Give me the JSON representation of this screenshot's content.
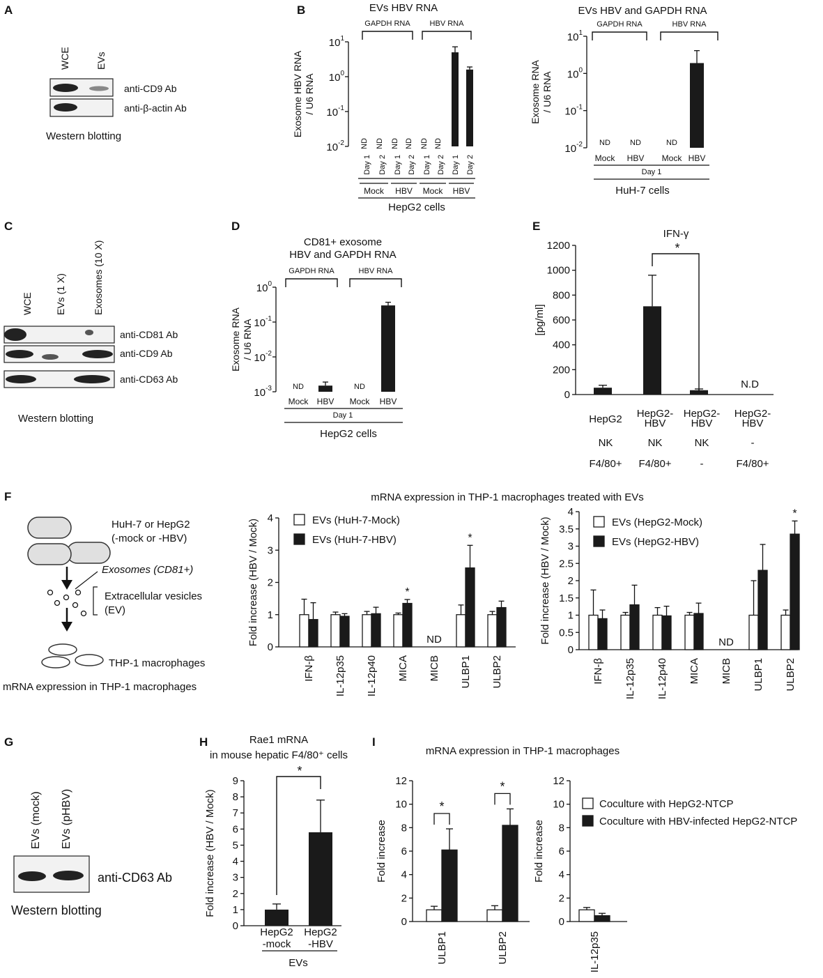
{
  "panel_letters": [
    "A",
    "B",
    "C",
    "D",
    "E",
    "F",
    "G",
    "H",
    "I"
  ],
  "panelA": {
    "lanes": [
      "WCE",
      "EVs"
    ],
    "bands": [
      "anti-CD9 Ab",
      "anti-β-actin Ab"
    ],
    "caption": "Western blotting"
  },
  "panelC": {
    "lanes": [
      "WCE",
      "EVs (1 X)",
      "Exosomes (10 X)"
    ],
    "bands": [
      "anti-CD81 Ab",
      "anti-CD9 Ab",
      "anti-CD63 Ab"
    ],
    "caption": "Western blotting"
  },
  "panelG": {
    "lanes": [
      "EVs (mock)",
      "EVs (pHBV)"
    ],
    "bands": [
      "anti-CD63 Ab"
    ],
    "caption": "Western blotting"
  },
  "panelF_schematic": {
    "cells": "HuH-7 or HepG2",
    "cells2": "(-mock or -HBV)",
    "exosomes": "Exosomes (CD81+)",
    "ev1": "Extracellular vesicles",
    "ev2": "(EV)",
    "macrophages": "THP-1 macrophages",
    "bottom": "mRNA expression in THP-1 macrophages"
  },
  "panelF_title": "mRNA expression in THP-1 macrophages treated with EVs",
  "panelI_title": "mRNA expression in THP-1 macrophages",
  "chart_data": [
    {
      "id": "B1",
      "type": "bar",
      "scale": "log",
      "title": "EVs HBV RNA",
      "ylabel_lines": [
        "Exosome HBV RNA",
        "/ U6 RNA"
      ],
      "ylim": [
        0.01,
        10
      ],
      "ticks": [
        {
          "v": 0.01,
          "base": "10",
          "exp": "-2"
        },
        {
          "v": 0.1,
          "base": "10",
          "exp": "-1"
        },
        {
          "v": 1,
          "base": "10",
          "exp": "0"
        },
        {
          "v": 10,
          "base": "10",
          "exp": "1"
        }
      ],
      "categories": [
        "Day 1",
        "Day 2",
        "Day 1",
        "Day 2",
        "Day 1",
        "Day 2",
        "Day 1",
        "Day 2"
      ],
      "values": [
        null,
        null,
        null,
        null,
        null,
        null,
        5.0,
        1.6
      ],
      "errors": [
        0,
        0,
        0,
        0,
        0,
        0,
        2.2,
        0.3
      ],
      "labels": [
        "ND",
        "ND",
        "ND",
        "ND",
        "ND",
        "ND",
        "",
        ""
      ],
      "groups": [
        "Mock",
        "HBV",
        "Mock",
        "HBV"
      ],
      "brackets": [
        "GAPDH RNA",
        "HBV RNA"
      ],
      "xlabel": "HepG2 cells"
    },
    {
      "id": "B2",
      "type": "bar",
      "scale": "log",
      "title": "EVs HBV and GAPDH RNA",
      "ylabel_lines": [
        "Exosome RNA",
        "/ U6 RNA"
      ],
      "ylim": [
        0.01,
        10
      ],
      "ticks": [
        {
          "v": 0.01,
          "base": "10",
          "exp": "-2"
        },
        {
          "v": 0.1,
          "base": "10",
          "exp": "-1"
        },
        {
          "v": 1,
          "base": "10",
          "exp": "0"
        },
        {
          "v": 10,
          "base": "10",
          "exp": "1"
        }
      ],
      "categories": [
        "Mock",
        "HBV",
        "Mock",
        "HBV"
      ],
      "values": [
        null,
        null,
        null,
        1.9
      ],
      "errors": [
        0,
        0,
        0,
        2.2
      ],
      "labels": [
        "ND",
        "ND",
        "ND",
        ""
      ],
      "day": "Day 1",
      "brackets": [
        "GAPDH RNA",
        "HBV RNA"
      ],
      "xlabel": "HuH-7 cells"
    },
    {
      "id": "D",
      "type": "bar",
      "scale": "log",
      "title_lines": [
        "CD81+ exosome",
        "HBV and GAPDH RNA"
      ],
      "ylabel_lines": [
        "Exosome RNA",
        "/ U6 RNA"
      ],
      "ylim": [
        0.001,
        1
      ],
      "ticks": [
        {
          "v": 0.001,
          "base": "10",
          "exp": "-3"
        },
        {
          "v": 0.01,
          "base": "10",
          "exp": "-2"
        },
        {
          "v": 0.1,
          "base": "10",
          "exp": "-1"
        },
        {
          "v": 1,
          "base": "10",
          "exp": "0"
        }
      ],
      "categories": [
        "Mock",
        "HBV",
        "Mock",
        "HBV"
      ],
      "values": [
        null,
        0.0015,
        null,
        0.3
      ],
      "errors": [
        0,
        0.0004,
        0,
        0.07
      ],
      "labels": [
        "ND",
        "",
        "ND",
        ""
      ],
      "day": "Day 1",
      "brackets": [
        "GAPDH RNA",
        "HBV RNA"
      ],
      "xlabel": "HepG2 cells"
    },
    {
      "id": "E",
      "type": "bar",
      "title": "IFN-γ",
      "ylabel": "[pg/ml]",
      "ylim": [
        0,
        1200
      ],
      "yticks": [
        0,
        200,
        400,
        600,
        800,
        1000,
        1200
      ],
      "categories": [
        "HepG2",
        "HepG2-\nHBV",
        "HepG2-\nHBV",
        "HepG2-\nHBV"
      ],
      "row2": [
        "NK",
        "NK",
        "NK",
        "-"
      ],
      "row3": [
        "F4/80+",
        "F4/80+",
        "-",
        "F4/80+"
      ],
      "values": [
        55,
        710,
        35,
        null
      ],
      "errors": [
        20,
        250,
        10,
        0
      ],
      "labels": [
        "",
        "",
        "",
        "N.D"
      ],
      "significance": "*"
    },
    {
      "id": "F1",
      "type": "bar",
      "ylabel": "Fold increase (HBV / Mock)",
      "ylim": [
        0,
        4
      ],
      "yticks": [
        0,
        1,
        2,
        3,
        4
      ],
      "categories": [
        "IFN-β",
        "IL-12p35",
        "IL-12p40",
        "MICA",
        "MICB",
        "ULBP1",
        "ULBP2"
      ],
      "series": [
        {
          "name": "EVs (HuH-7-Mock)",
          "values": [
            1,
            1,
            1,
            1,
            null,
            1,
            1
          ],
          "errors": [
            0.48,
            0.08,
            0.1,
            0.05,
            0,
            0.3,
            0.1
          ]
        },
        {
          "name": "EVs (HuH-7-HBV)",
          "values": [
            0.85,
            0.95,
            1.03,
            1.35,
            null,
            2.45,
            1.22
          ],
          "errors": [
            0.52,
            0.08,
            0.2,
            0.12,
            0,
            0.7,
            0.2
          ]
        }
      ],
      "labels": [
        "",
        "",
        "",
        "",
        "ND",
        "",
        ""
      ],
      "stars": [
        "",
        "",
        "",
        "*",
        "",
        "*",
        ""
      ]
    },
    {
      "id": "F2",
      "type": "bar",
      "ylabel": "Fold increase (HBV / Mock)",
      "ylim": [
        0,
        4
      ],
      "yticks": [
        0,
        0.5,
        1,
        1.5,
        2,
        2.5,
        3,
        3.5,
        4
      ],
      "categories": [
        "IFN-β",
        "IL-12p35",
        "IL-12p40",
        "MICA",
        "MICB",
        "ULBP1",
        "ULBP2"
      ],
      "series": [
        {
          "name": "EVs (HepG2-Mock)",
          "values": [
            1,
            1,
            1,
            1,
            null,
            1,
            1
          ],
          "errors": [
            0.73,
            0.08,
            0.22,
            0.08,
            0,
            1.0,
            0.15
          ]
        },
        {
          "name": "EVs (HepG2-HBV)",
          "values": [
            0.9,
            1.3,
            0.98,
            1.05,
            null,
            2.3,
            3.35
          ],
          "errors": [
            0.25,
            0.57,
            0.28,
            0.3,
            0,
            0.75,
            0.38
          ]
        }
      ],
      "labels": [
        "",
        "",
        "",
        "",
        "ND",
        "",
        ""
      ],
      "stars": [
        "",
        "",
        "",
        "",
        "",
        "",
        "*"
      ]
    },
    {
      "id": "H",
      "type": "bar",
      "title_lines": [
        "Rae1 mRNA",
        "in mouse hepatic F4/80⁺ cells"
      ],
      "ylabel": "Fold increase (HBV / Mock)",
      "ylim": [
        0,
        9
      ],
      "yticks": [
        0,
        1,
        2,
        3,
        4,
        5,
        6,
        7,
        8,
        9
      ],
      "categories": [
        "HepG2\n-mock",
        "HepG2\n-HBV"
      ],
      "values": [
        1.0,
        5.8
      ],
      "errors": [
        0.35,
        2.0
      ],
      "group": "EVs",
      "significance": "*"
    },
    {
      "id": "I1",
      "type": "bar",
      "ylabel": "Fold increase",
      "ylim": [
        0,
        12
      ],
      "yticks": [
        0,
        2,
        4,
        6,
        8,
        10,
        12
      ],
      "categories": [
        "ULBP1",
        "ULBP2"
      ],
      "series": [
        {
          "name": "Coculture with HepG2-NTCP",
          "values": [
            1.0,
            1.0
          ],
          "errors": [
            0.3,
            0.35
          ]
        },
        {
          "name": "Coculture with HBV-infected HepG2-NTCP",
          "values": [
            6.1,
            8.2
          ],
          "errors": [
            1.8,
            1.4
          ]
        }
      ],
      "stars": [
        "*",
        "*"
      ]
    },
    {
      "id": "I2",
      "type": "bar",
      "ylabel": "Fold increase",
      "ylim": [
        0,
        12
      ],
      "yticks": [
        0,
        2,
        4,
        6,
        8,
        10,
        12
      ],
      "categories": [
        "IL-12p35"
      ],
      "series": [
        {
          "name": "Coculture with HepG2-NTCP",
          "values": [
            1.0
          ],
          "errors": [
            0.2
          ]
        },
        {
          "name": "Coculture with HBV-infected HepG2-NTCP",
          "values": [
            0.5
          ],
          "errors": [
            0.2
          ]
        }
      ]
    }
  ]
}
